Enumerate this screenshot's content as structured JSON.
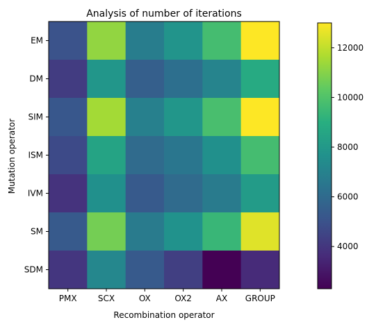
{
  "chart_data": {
    "type": "heatmap",
    "title": "Analysis of number of iterations",
    "xlabel": "Recombination operator",
    "ylabel": "Mutation operator",
    "x_categories": [
      "PMX",
      "SCX",
      "OX",
      "OX2",
      "AX",
      "GROUP"
    ],
    "y_categories": [
      "EM",
      "DM",
      "SIM",
      "ISM",
      "IVM",
      "SM",
      "SDM"
    ],
    "values": [
      [
        5000,
        11200,
        6800,
        7800,
        9700,
        13000
      ],
      [
        4200,
        7900,
        5500,
        6200,
        7100,
        8800
      ],
      [
        5200,
        11500,
        6900,
        7900,
        9800,
        13000
      ],
      [
        4700,
        8500,
        6000,
        6500,
        7600,
        9700
      ],
      [
        3900,
        7600,
        5300,
        6000,
        6700,
        8100
      ],
      [
        5300,
        10700,
        6700,
        7700,
        9400,
        12500
      ],
      [
        4000,
        7200,
        5300,
        4300,
        2300,
        3600
      ]
    ],
    "colorbar": {
      "range": [
        2300,
        13000
      ],
      "ticks": [
        4000,
        6000,
        8000,
        10000,
        12000
      ],
      "tick_labels": [
        "4000",
        "6000",
        "8000",
        "10000",
        "12000"
      ]
    },
    "colormap": "viridis"
  }
}
